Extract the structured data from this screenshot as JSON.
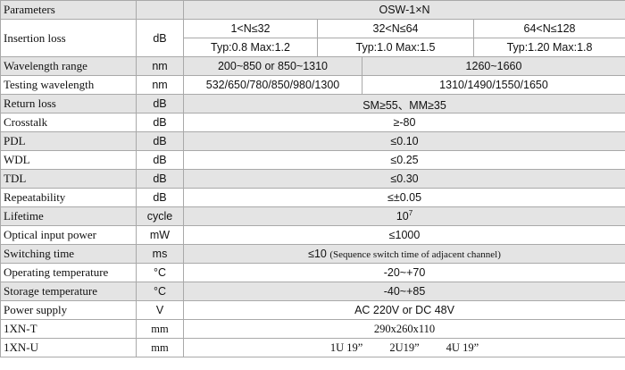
{
  "header": {
    "param": "Parameters",
    "model": "OSW-1×N"
  },
  "insertion": {
    "label": "Insertion loss",
    "unit": "dB",
    "ranges": [
      "1<N≤32",
      "32<N≤64",
      "64<N≤128"
    ],
    "values": [
      "Typ:0.8 Max:1.2",
      "Typ:1.0  Max:1.5",
      "Typ:1.20 Max:1.8"
    ]
  },
  "wavelength_range": {
    "label": "Wavelength range",
    "unit": "nm",
    "values": [
      "200~850  or  850~1310",
      "1260~1660"
    ]
  },
  "testing_wavelength": {
    "label": "Testing wavelength",
    "unit": "nm",
    "values": [
      "532/650/780/850/980/1300",
      "1310/1490/1550/1650"
    ]
  },
  "rows": [
    {
      "label": "Return loss",
      "unit": "dB",
      "value": "SM≥55、MM≥35"
    },
    {
      "label": "Crosstalk",
      "unit": "dB",
      "value": "≥-80"
    },
    {
      "label": "PDL",
      "unit": "dB",
      "value": "≤0.10"
    },
    {
      "label": "WDL",
      "unit": "dB",
      "value": "≤0.25"
    },
    {
      "label": "TDL",
      "unit": "dB",
      "value": "≤0.30"
    },
    {
      "label": "Repeatability",
      "unit": "dB",
      "value": "≤±0.05"
    },
    {
      "label": "Lifetime",
      "unit": "cycle",
      "value": "10",
      "sup": "7"
    },
    {
      "label": "Optical input power",
      "unit": "mW",
      "value": "≤1000"
    },
    {
      "label": "Switching time",
      "unit": "ms",
      "value": "≤10 ",
      "note": "(Sequence switch time of adjacent channel)"
    },
    {
      "label": "Operating temperature",
      "unit": "°C",
      "value": "-20~+70"
    },
    {
      "label": "Storage temperature",
      "unit": "°C",
      "value": "-40~+85"
    },
    {
      "label": "Power supply",
      "unit": "V",
      "value": "AC  220V   or   DC  48V"
    },
    {
      "label": "1XN-T",
      "unit": "mm",
      "value": "290x260x110"
    },
    {
      "label": "1XN-U",
      "unit": "mm",
      "values": [
        "1U 19”",
        "2U19”",
        "4U 19”"
      ]
    }
  ]
}
